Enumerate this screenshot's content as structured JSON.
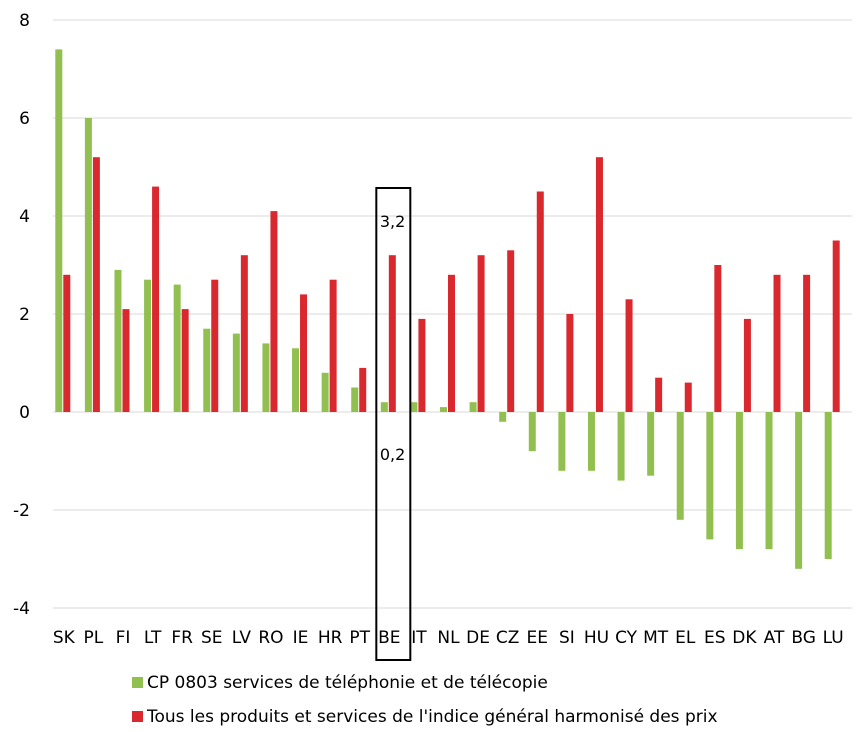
{
  "chart_data": {
    "type": "bar",
    "categories": [
      "SK",
      "PL",
      "FI",
      "LT",
      "FR",
      "SE",
      "LV",
      "RO",
      "IE",
      "HR",
      "PT",
      "BE",
      "IT",
      "NL",
      "DE",
      "CZ",
      "EE",
      "SI",
      "HU",
      "CY",
      "MT",
      "EL",
      "ES",
      "DK",
      "AT",
      "BG",
      "LU"
    ],
    "series": [
      {
        "name": "CP 0803 services de téléphonie et de télécopie",
        "color": "#92c050",
        "values": [
          7.4,
          6.0,
          2.9,
          2.7,
          2.6,
          1.7,
          1.6,
          1.4,
          1.3,
          0.8,
          0.5,
          0.2,
          0.2,
          0.1,
          0.2,
          -0.2,
          -0.8,
          -1.2,
          -1.2,
          -1.4,
          -1.3,
          -2.2,
          -2.6,
          -2.8,
          -2.8,
          -3.2,
          -3.0
        ]
      },
      {
        "name": "Tous les produits et services de l'indice général harmonisé des prix",
        "color": "#d9292f",
        "values": [
          2.8,
          5.2,
          2.1,
          4.6,
          2.1,
          2.7,
          3.2,
          4.1,
          2.4,
          2.7,
          0.9,
          3.2,
          1.9,
          2.8,
          3.2,
          3.3,
          4.5,
          2.0,
          5.2,
          2.3,
          0.7,
          0.6,
          3.0,
          1.9,
          2.8,
          2.8,
          3.5
        ]
      }
    ],
    "ylim": [
      -4,
      8
    ],
    "yticks": [
      -4,
      -2,
      0,
      2,
      4,
      6,
      8
    ],
    "ytick_labels": [
      "-4",
      "-2",
      "0",
      "2",
      "4",
      "6",
      "8"
    ],
    "grid": true,
    "legend_position": "bottom",
    "highlight": {
      "category": "BE",
      "labels": [
        "3,2",
        "0,2"
      ]
    }
  }
}
